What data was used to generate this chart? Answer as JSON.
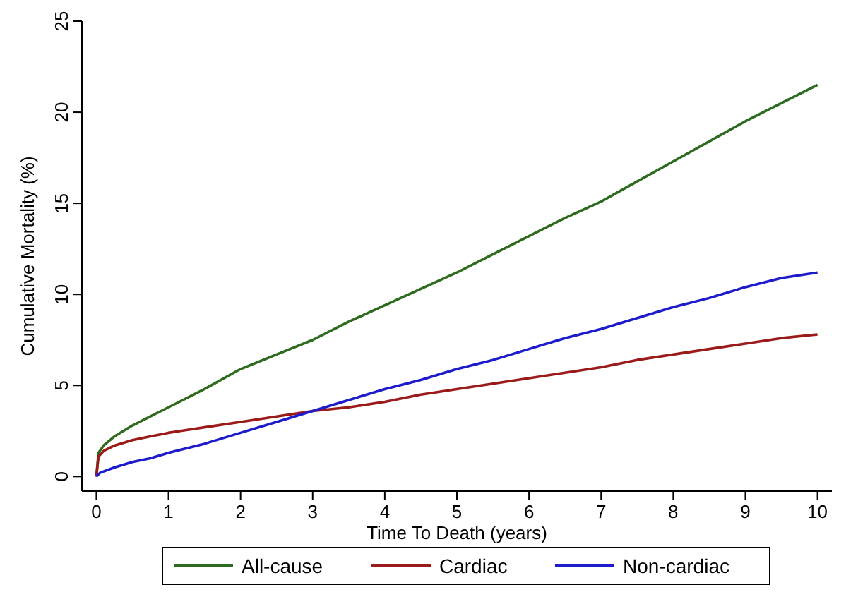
{
  "chart_data": {
    "type": "line",
    "xlabel": "Time To Death (years)",
    "ylabel": "Cumulative Mortality (%)",
    "xlim": [
      -0.2,
      10.2
    ],
    "ylim": [
      -0.8,
      25
    ],
    "xticks": [
      0,
      1,
      2,
      3,
      4,
      5,
      6,
      7,
      8,
      9,
      10
    ],
    "yticks": [
      0,
      5,
      10,
      15,
      20,
      25
    ],
    "grid": false,
    "legend": "bottom",
    "marker": "none",
    "line_style": "solid",
    "series": [
      {
        "name": "All-cause",
        "color": "#2e6b1f",
        "x": [
          0,
          0.03,
          0.1,
          0.25,
          0.5,
          0.75,
          1,
          1.5,
          2,
          2.5,
          3,
          3.5,
          4,
          4.5,
          5,
          5.5,
          6,
          6.5,
          7,
          7.5,
          8,
          8.5,
          9,
          9.5,
          10
        ],
        "values": [
          0,
          1.3,
          1.7,
          2.2,
          2.8,
          3.3,
          3.8,
          4.8,
          5.9,
          6.7,
          7.5,
          8.5,
          9.4,
          10.3,
          11.2,
          12.2,
          13.2,
          14.2,
          15.1,
          16.2,
          17.3,
          18.4,
          19.5,
          20.5,
          21.5
        ]
      },
      {
        "name": "Cardiac",
        "color": "#9b1b1b",
        "x": [
          0,
          0.03,
          0.1,
          0.25,
          0.5,
          0.75,
          1,
          1.5,
          2,
          2.5,
          3,
          3.5,
          4,
          4.5,
          5,
          5.5,
          6,
          6.5,
          7,
          7.5,
          8,
          8.5,
          9,
          9.5,
          10
        ],
        "values": [
          0,
          1.1,
          1.4,
          1.7,
          2.0,
          2.2,
          2.4,
          2.7,
          3.0,
          3.3,
          3.6,
          3.8,
          4.1,
          4.5,
          4.8,
          5.1,
          5.4,
          5.7,
          6.0,
          6.4,
          6.7,
          7.0,
          7.3,
          7.6,
          7.8
        ]
      },
      {
        "name": "Non-cardiac",
        "color": "#1c1ccc",
        "x": [
          0,
          0.05,
          0.25,
          0.5,
          0.75,
          1,
          1.5,
          2,
          2.5,
          3,
          3.5,
          4,
          4.5,
          5,
          5.5,
          6,
          6.5,
          7,
          7.5,
          8,
          8.5,
          9,
          9.5,
          10
        ],
        "values": [
          0,
          0.2,
          0.5,
          0.8,
          1.0,
          1.3,
          1.8,
          2.4,
          3.0,
          3.6,
          4.2,
          4.8,
          5.3,
          5.9,
          6.4,
          7.0,
          7.6,
          8.1,
          8.7,
          9.3,
          9.8,
          10.4,
          10.9,
          11.2
        ]
      }
    ]
  }
}
